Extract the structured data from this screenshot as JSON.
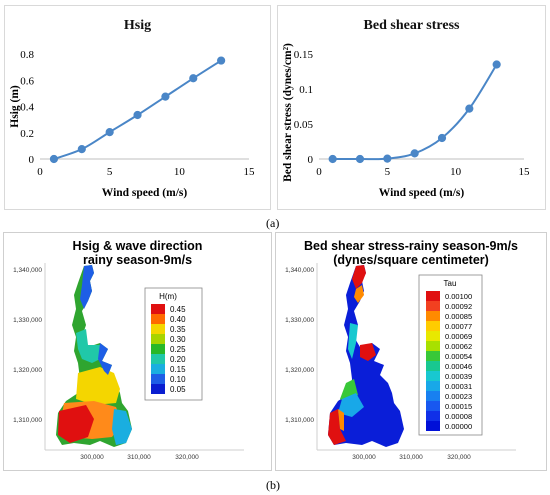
{
  "figure": {
    "caption_a": "(a)",
    "caption_b": "(b)"
  },
  "chart_data": [
    {
      "type": "line",
      "title": "Hsig",
      "xlabel": "Wind speed (m/s)",
      "ylabel": "Hsig (m)",
      "x": [
        1,
        3,
        5,
        7,
        9,
        11,
        13
      ],
      "y": [
        0.0,
        0.075,
        0.205,
        0.335,
        0.475,
        0.615,
        0.75
      ],
      "xlim": [
        0,
        15
      ],
      "ylim": [
        0,
        0.8
      ],
      "xticks": [
        "0",
        "5",
        "10",
        "15"
      ],
      "yticks": [
        "0",
        "0.2",
        "0.4",
        "0.6",
        "0.8"
      ],
      "color": "#4a86c7",
      "grid": false,
      "legend": "none"
    },
    {
      "type": "line",
      "title": "Bed shear stress",
      "xlabel": "Wind speed (m/s)",
      "ylabel": "Bed shear stress (dynes/cm²)",
      "x": [
        1,
        3,
        5,
        7,
        9,
        11,
        13
      ],
      "y": [
        0.0,
        0.0,
        0.0005,
        0.008,
        0.03,
        0.072,
        0.135
      ],
      "xlim": [
        0,
        15
      ],
      "ylim": [
        0,
        0.15
      ],
      "xticks": [
        "0",
        "5",
        "10",
        "15"
      ],
      "yticks": [
        "0",
        "0.05",
        "0.1",
        "0.15"
      ],
      "color": "#4a86c7",
      "grid": false,
      "legend": "none"
    }
  ],
  "maps": {
    "left": {
      "title_line1": "Hsig & wave direction",
      "title_line2": "rainy season-9m/s",
      "legend_title": "H(m)",
      "legend_items": [
        {
          "label": "0.45",
          "color": "#e01010"
        },
        {
          "label": "0.40",
          "color": "#ff6a00"
        },
        {
          "label": "0.35",
          "color": "#f4d600"
        },
        {
          "label": "0.30",
          "color": "#a8d400"
        },
        {
          "label": "0.25",
          "color": "#28b828"
        },
        {
          "label": "0.20",
          "color": "#20c8a8"
        },
        {
          "label": "0.15",
          "color": "#1aaee0"
        },
        {
          "label": "0.10",
          "color": "#1e5ee6"
        },
        {
          "label": "0.05",
          "color": "#0a1ed0"
        }
      ],
      "y_ticks": [
        "1,340,000",
        "1,330,000",
        "1,320,000",
        "1,310,000"
      ],
      "x_ticks": [
        "300,000",
        "310,000",
        "320,000"
      ]
    },
    "right": {
      "title_line1": "Bed shear stress-rainy season-9m/s",
      "title_line2": "(dynes/square centimeter)",
      "legend_title": "Tau",
      "legend_items": [
        {
          "label": "0.00100",
          "color": "#e01010"
        },
        {
          "label": "0.00092",
          "color": "#f24020"
        },
        {
          "label": "0.00085",
          "color": "#ff8a00"
        },
        {
          "label": "0.00077",
          "color": "#ffcc00"
        },
        {
          "label": "0.00069",
          "color": "#e8e800"
        },
        {
          "label": "0.00062",
          "color": "#a8e000"
        },
        {
          "label": "0.00054",
          "color": "#38c838"
        },
        {
          "label": "0.00046",
          "color": "#18c890"
        },
        {
          "label": "0.00039",
          "color": "#18c8d0"
        },
        {
          "label": "0.00031",
          "color": "#18a8e8"
        },
        {
          "label": "0.00023",
          "color": "#1880f0"
        },
        {
          "label": "0.00015",
          "color": "#1858f0"
        },
        {
          "label": "0.00008",
          "color": "#1030e8"
        },
        {
          "label": "0.00000",
          "color": "#0010d8"
        }
      ],
      "y_ticks": [
        "1,340,000",
        "1,330,000",
        "1,320,000",
        "1,310,000"
      ],
      "x_ticks": [
        "300,000",
        "310,000",
        "320,000"
      ]
    }
  }
}
